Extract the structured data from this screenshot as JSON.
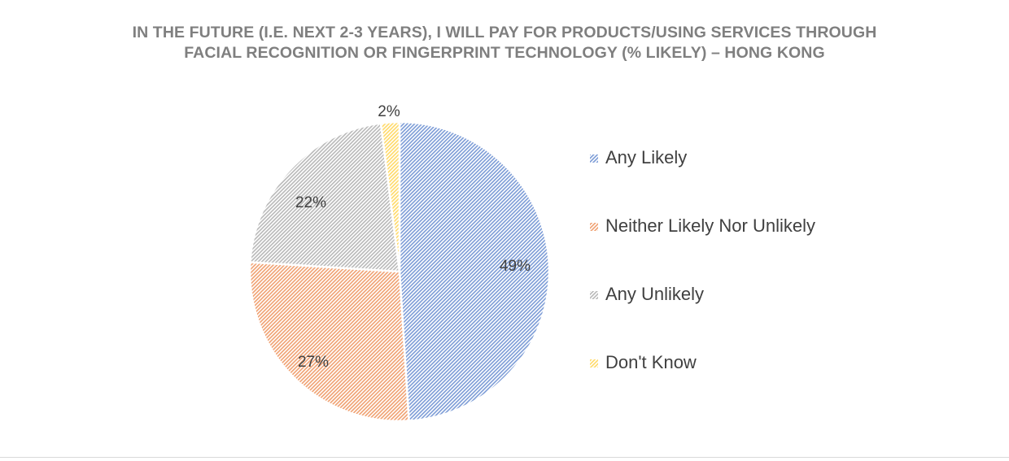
{
  "chart_data": {
    "type": "pie",
    "title_lines": [
      "IN THE FUTURE (I.E. NEXT 2-3 YEARS), I WILL PAY FOR PRODUCTS/USING SERVICES THROUGH",
      "FACIAL RECOGNITION OR FINGERPRINT TECHNOLOGY (% LIKELY) – HONG KONG"
    ],
    "slices": [
      {
        "name": "Any Likely",
        "value": 49,
        "label": "49%",
        "color": "#7b9bd6"
      },
      {
        "name": "Neither Likely Nor Unlikely",
        "value": 27,
        "label": "27%",
        "color": "#f0a070"
      },
      {
        "name": "Any Unlikely",
        "value": 22,
        "label": "22%",
        "color": "#b8b8b8"
      },
      {
        "name": "Don't Know",
        "value": 2,
        "label": "2%",
        "color": "#ffd966"
      }
    ],
    "fill_pattern": "diagonal-hatch",
    "legend_position": "right"
  }
}
